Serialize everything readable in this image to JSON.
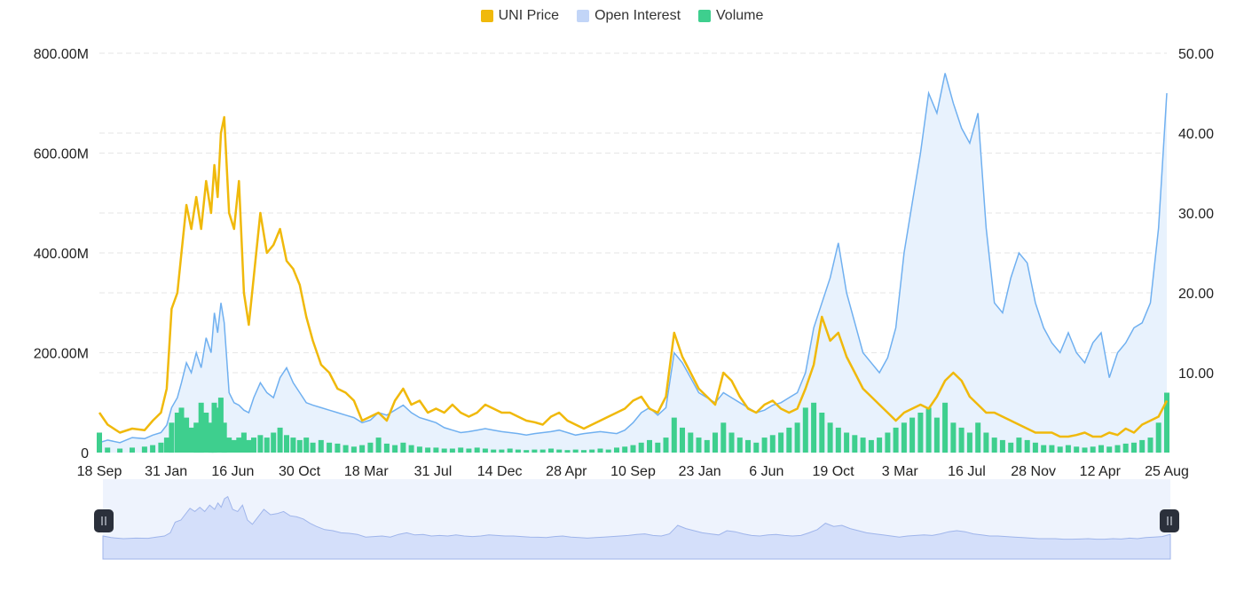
{
  "legend": {
    "price_label": "UNI Price",
    "oi_label": "Open Interest",
    "volume_label": "Volume"
  },
  "colors": {
    "price": "#f0b90b",
    "open_interest_line": "#70b0f0",
    "open_interest_fill": "#e8f2fd",
    "volume": "#3ecf8e",
    "swatch_open_interest": "#c2d5f7",
    "grid": "#e6e6e6",
    "navigator_bg": "#eef3fd",
    "navigator_fill": "#d4dffa",
    "navigator_line": "#9fb5eb",
    "handle": "#2b303b"
  },
  "chart_data": {
    "type": "line",
    "x_tick_labels": [
      "18 Sep",
      "31 Jan",
      "16 Jun",
      "30 Oct",
      "18 Mar",
      "31 Jul",
      "14 Dec",
      "28 Apr",
      "10 Sep",
      "23 Jan",
      "6 Jun",
      "19 Oct",
      "3 Mar",
      "16 Jul",
      "28 Nov",
      "12 Apr",
      "25 Aug"
    ],
    "x_range": [
      0,
      1300
    ],
    "y_left": {
      "ticks": [
        "0",
        "200.00M",
        "400.00M",
        "600.00M",
        "800.00M"
      ],
      "tick_values": [
        0,
        200000000,
        400000000,
        600000000,
        800000000
      ],
      "range": [
        0,
        800000000
      ]
    },
    "y_right": {
      "ticks": [
        "10.00",
        "20.00",
        "30.00",
        "40.00",
        "50.00"
      ],
      "tick_values": [
        10,
        20,
        30,
        40,
        50
      ],
      "range": [
        0,
        50
      ]
    },
    "grid": true,
    "legend_position": "top-center",
    "series": [
      {
        "name": "UNI Price",
        "axis": "right",
        "style": "line",
        "x": [
          0,
          10,
          25,
          40,
          55,
          65,
          75,
          82,
          88,
          95,
          100,
          106,
          112,
          118,
          124,
          130,
          136,
          140,
          144,
          148,
          152,
          158,
          164,
          170,
          176,
          182,
          188,
          196,
          204,
          212,
          220,
          228,
          236,
          244,
          252,
          260,
          270,
          280,
          290,
          300,
          310,
          320,
          330,
          340,
          350,
          360,
          370,
          380,
          390,
          400,
          410,
          420,
          430,
          440,
          450,
          460,
          470,
          480,
          490,
          500,
          510,
          520,
          530,
          540,
          550,
          560,
          570,
          580,
          590,
          600,
          610,
          620,
          630,
          640,
          650,
          660,
          670,
          680,
          690,
          700,
          710,
          720,
          730,
          740,
          750,
          760,
          770,
          780,
          790,
          800,
          810,
          820,
          830,
          840,
          850,
          860,
          870,
          880,
          890,
          900,
          910,
          920,
          930,
          940,
          950,
          960,
          970,
          980,
          990,
          1000,
          1010,
          1020,
          1030,
          1040,
          1050,
          1060,
          1070,
          1080,
          1090,
          1100,
          1110,
          1120,
          1130,
          1140,
          1150,
          1160,
          1170,
          1180,
          1190,
          1200,
          1210,
          1220,
          1230,
          1240,
          1250,
          1260,
          1270,
          1280,
          1290,
          1300
        ],
        "values": [
          5,
          3.5,
          2.5,
          3,
          2.8,
          4,
          5,
          8,
          18,
          20,
          25,
          31,
          28,
          32,
          28,
          34,
          30,
          36,
          32,
          40,
          42,
          30,
          28,
          34,
          20,
          16,
          22,
          30,
          25,
          26,
          28,
          24,
          23,
          21,
          17,
          14,
          11,
          10,
          8,
          7.5,
          6.5,
          4,
          4.5,
          5,
          4,
          6.5,
          8,
          6,
          6.5,
          5,
          5.5,
          5,
          6,
          5,
          4.5,
          5,
          6,
          5.5,
          5,
          5,
          4.5,
          4,
          3.8,
          3.5,
          4.5,
          5,
          4,
          3.5,
          3,
          3.5,
          4,
          4.5,
          5,
          5.5,
          6.5,
          7,
          5.5,
          5,
          7,
          15,
          12,
          10,
          8,
          7,
          6,
          10,
          9,
          7,
          5.5,
          5,
          6,
          6.5,
          5.5,
          5,
          5.5,
          8,
          11,
          17,
          14,
          15,
          12,
          10,
          8,
          7,
          6,
          5,
          4,
          5,
          5.5,
          6,
          5.5,
          7,
          9,
          10,
          9,
          7,
          6,
          5,
          5,
          4.5,
          4,
          3.5,
          3,
          2.5,
          2.5,
          2.5,
          2,
          2,
          2.2,
          2.5,
          2,
          2,
          2.5,
          2.2,
          3,
          2.5,
          3.5,
          4,
          4.5,
          6.5
        ]
      },
      {
        "name": "Open Interest",
        "axis": "left",
        "style": "area",
        "x": [
          0,
          10,
          25,
          40,
          55,
          65,
          75,
          82,
          88,
          95,
          100,
          106,
          112,
          118,
          124,
          130,
          136,
          140,
          144,
          148,
          152,
          158,
          164,
          170,
          176,
          182,
          188,
          196,
          204,
          212,
          220,
          228,
          236,
          244,
          252,
          260,
          270,
          280,
          290,
          300,
          310,
          320,
          330,
          340,
          350,
          360,
          370,
          380,
          390,
          400,
          410,
          420,
          430,
          440,
          450,
          460,
          470,
          480,
          490,
          500,
          510,
          520,
          530,
          540,
          550,
          560,
          570,
          580,
          590,
          600,
          610,
          620,
          630,
          640,
          650,
          660,
          670,
          680,
          690,
          700,
          710,
          720,
          730,
          740,
          750,
          760,
          770,
          780,
          790,
          800,
          810,
          820,
          830,
          840,
          850,
          860,
          870,
          880,
          890,
          900,
          910,
          920,
          930,
          940,
          950,
          960,
          970,
          980,
          990,
          1000,
          1010,
          1020,
          1030,
          1040,
          1050,
          1060,
          1070,
          1080,
          1090,
          1100,
          1110,
          1120,
          1130,
          1140,
          1150,
          1160,
          1170,
          1180,
          1190,
          1200,
          1210,
          1220,
          1230,
          1240,
          1250,
          1260,
          1270,
          1280,
          1290,
          1300
        ],
        "values": [
          20000000,
          25000000,
          20000000,
          30000000,
          28000000,
          35000000,
          40000000,
          55000000,
          90000000,
          110000000,
          140000000,
          180000000,
          160000000,
          200000000,
          170000000,
          230000000,
          200000000,
          280000000,
          240000000,
          300000000,
          260000000,
          120000000,
          100000000,
          95000000,
          85000000,
          80000000,
          110000000,
          140000000,
          120000000,
          110000000,
          150000000,
          170000000,
          140000000,
          120000000,
          100000000,
          95000000,
          90000000,
          85000000,
          80000000,
          75000000,
          70000000,
          60000000,
          65000000,
          80000000,
          75000000,
          85000000,
          95000000,
          80000000,
          70000000,
          65000000,
          60000000,
          50000000,
          45000000,
          40000000,
          42000000,
          45000000,
          48000000,
          45000000,
          42000000,
          40000000,
          38000000,
          35000000,
          38000000,
          40000000,
          42000000,
          45000000,
          40000000,
          35000000,
          38000000,
          40000000,
          42000000,
          40000000,
          38000000,
          45000000,
          60000000,
          80000000,
          90000000,
          75000000,
          90000000,
          200000000,
          180000000,
          150000000,
          120000000,
          110000000,
          100000000,
          120000000,
          110000000,
          100000000,
          90000000,
          80000000,
          85000000,
          95000000,
          100000000,
          110000000,
          120000000,
          160000000,
          250000000,
          300000000,
          350000000,
          420000000,
          320000000,
          260000000,
          200000000,
          180000000,
          160000000,
          190000000,
          250000000,
          400000000,
          500000000,
          600000000,
          720000000,
          680000000,
          760000000,
          700000000,
          650000000,
          620000000,
          680000000,
          450000000,
          300000000,
          280000000,
          350000000,
          400000000,
          380000000,
          300000000,
          250000000,
          220000000,
          200000000,
          240000000,
          200000000,
          180000000,
          220000000,
          240000000,
          150000000,
          200000000,
          220000000,
          250000000,
          260000000,
          300000000,
          450000000,
          720000000
        ]
      },
      {
        "name": "Volume",
        "axis": "left",
        "style": "bars",
        "x": [
          0,
          10,
          25,
          40,
          55,
          65,
          75,
          82,
          88,
          95,
          100,
          106,
          112,
          118,
          124,
          130,
          136,
          140,
          144,
          148,
          152,
          158,
          164,
          170,
          176,
          182,
          188,
          196,
          204,
          212,
          220,
          228,
          236,
          244,
          252,
          260,
          270,
          280,
          290,
          300,
          310,
          320,
          330,
          340,
          350,
          360,
          370,
          380,
          390,
          400,
          410,
          420,
          430,
          440,
          450,
          460,
          470,
          480,
          490,
          500,
          510,
          520,
          530,
          540,
          550,
          560,
          570,
          580,
          590,
          600,
          610,
          620,
          630,
          640,
          650,
          660,
          670,
          680,
          690,
          700,
          710,
          720,
          730,
          740,
          750,
          760,
          770,
          780,
          790,
          800,
          810,
          820,
          830,
          840,
          850,
          860,
          870,
          880,
          890,
          900,
          910,
          920,
          930,
          940,
          950,
          960,
          970,
          980,
          990,
          1000,
          1010,
          1020,
          1030,
          1040,
          1050,
          1060,
          1070,
          1080,
          1090,
          1100,
          1110,
          1120,
          1130,
          1140,
          1150,
          1160,
          1170,
          1180,
          1190,
          1200,
          1210,
          1220,
          1230,
          1240,
          1250,
          1260,
          1270,
          1280,
          1290,
          1300
        ],
        "values": [
          40000000,
          10000000,
          8000000,
          10000000,
          12000000,
          15000000,
          20000000,
          30000000,
          60000000,
          80000000,
          90000000,
          70000000,
          50000000,
          60000000,
          100000000,
          80000000,
          60000000,
          100000000,
          90000000,
          110000000,
          60000000,
          30000000,
          25000000,
          30000000,
          40000000,
          25000000,
          30000000,
          35000000,
          30000000,
          40000000,
          50000000,
          35000000,
          30000000,
          25000000,
          30000000,
          20000000,
          25000000,
          20000000,
          18000000,
          15000000,
          12000000,
          15000000,
          20000000,
          30000000,
          18000000,
          15000000,
          20000000,
          15000000,
          12000000,
          10000000,
          10000000,
          8000000,
          8000000,
          10000000,
          8000000,
          10000000,
          8000000,
          6000000,
          6000000,
          8000000,
          6000000,
          5000000,
          6000000,
          6000000,
          8000000,
          6000000,
          5000000,
          6000000,
          5000000,
          6000000,
          8000000,
          6000000,
          10000000,
          12000000,
          15000000,
          20000000,
          25000000,
          20000000,
          30000000,
          70000000,
          50000000,
          40000000,
          30000000,
          25000000,
          40000000,
          60000000,
          40000000,
          30000000,
          25000000,
          20000000,
          30000000,
          35000000,
          40000000,
          50000000,
          60000000,
          90000000,
          100000000,
          80000000,
          60000000,
          50000000,
          40000000,
          35000000,
          30000000,
          25000000,
          30000000,
          40000000,
          50000000,
          60000000,
          70000000,
          80000000,
          90000000,
          70000000,
          100000000,
          60000000,
          50000000,
          40000000,
          60000000,
          40000000,
          30000000,
          25000000,
          20000000,
          30000000,
          25000000,
          20000000,
          15000000,
          15000000,
          12000000,
          15000000,
          12000000,
          10000000,
          12000000,
          15000000,
          12000000,
          15000000,
          18000000,
          20000000,
          25000000,
          30000000,
          60000000,
          120000000
        ]
      }
    ]
  }
}
